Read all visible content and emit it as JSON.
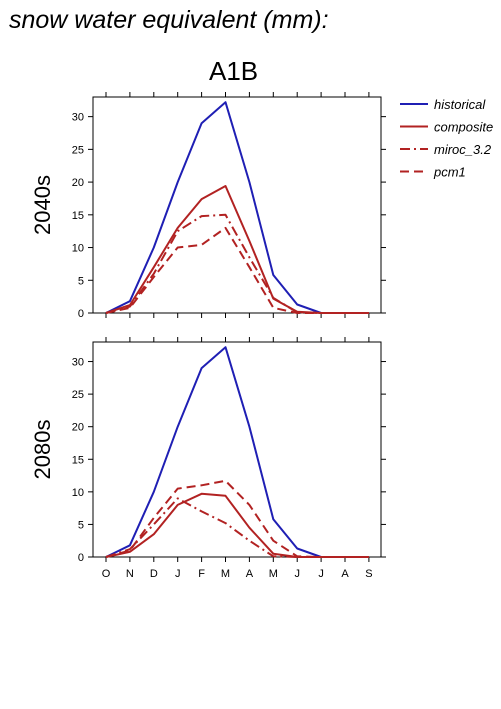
{
  "header": {
    "title": "snow water equivalent (mm):",
    "scenario": "A1B"
  },
  "chart_data": {
    "type": "line",
    "categories": [
      "O",
      "N",
      "D",
      "J",
      "F",
      "M",
      "A",
      "M",
      "J",
      "J",
      "A",
      "S"
    ],
    "ylim": [
      0,
      33
    ],
    "yticks": [
      0,
      5,
      10,
      15,
      20,
      25,
      30
    ],
    "grid": false,
    "legend_position": "top-right, outside plot",
    "series_styles": {
      "historical": {
        "color": "#1f1fb4",
        "dash": "solid"
      },
      "composite": {
        "color": "#b22222",
        "dash": "solid"
      },
      "miroc_3.2": {
        "color": "#b22222",
        "dash": "dash-dot"
      },
      "pcm1": {
        "color": "#b22222",
        "dash": "dash"
      }
    },
    "panels": [
      {
        "label": "2040s",
        "series": [
          {
            "name": "historical",
            "values": [
              0,
              1.8,
              10,
              20,
              29,
              32.2,
              20,
              5.8,
              1.3,
              0,
              0,
              0
            ]
          },
          {
            "name": "composite",
            "values": [
              0,
              1.2,
              7,
              13,
              17.4,
              19.4,
              11,
              2.2,
              0.2,
              0,
              0,
              0
            ]
          },
          {
            "name": "miroc_3.2",
            "values": [
              0,
              1,
              6,
              12.5,
              14.8,
              15,
              8.5,
              2.3,
              0.1,
              0,
              0,
              0
            ]
          },
          {
            "name": "pcm1",
            "values": [
              0,
              0.8,
              5.5,
              10,
              10.4,
              13,
              7,
              0.8,
              0,
              0,
              0,
              0
            ]
          }
        ]
      },
      {
        "label": "2080s",
        "series": [
          {
            "name": "historical",
            "values": [
              0,
              1.8,
              10,
              20,
              29,
              32.2,
              20,
              5.8,
              1.3,
              0,
              0,
              0
            ]
          },
          {
            "name": "composite",
            "values": [
              0,
              0.8,
              3.5,
              8,
              9.7,
              9.4,
              4.5,
              0.5,
              0,
              0,
              0,
              0
            ]
          },
          {
            "name": "miroc_3.2",
            "values": [
              0,
              1.2,
              5,
              9,
              7,
              5.2,
              2.5,
              0.1,
              0,
              0,
              0,
              0
            ]
          },
          {
            "name": "pcm1",
            "values": [
              0,
              1,
              6,
              10.5,
              11,
              11.7,
              8,
              2.5,
              0.1,
              0,
              0,
              0
            ]
          }
        ]
      }
    ]
  }
}
